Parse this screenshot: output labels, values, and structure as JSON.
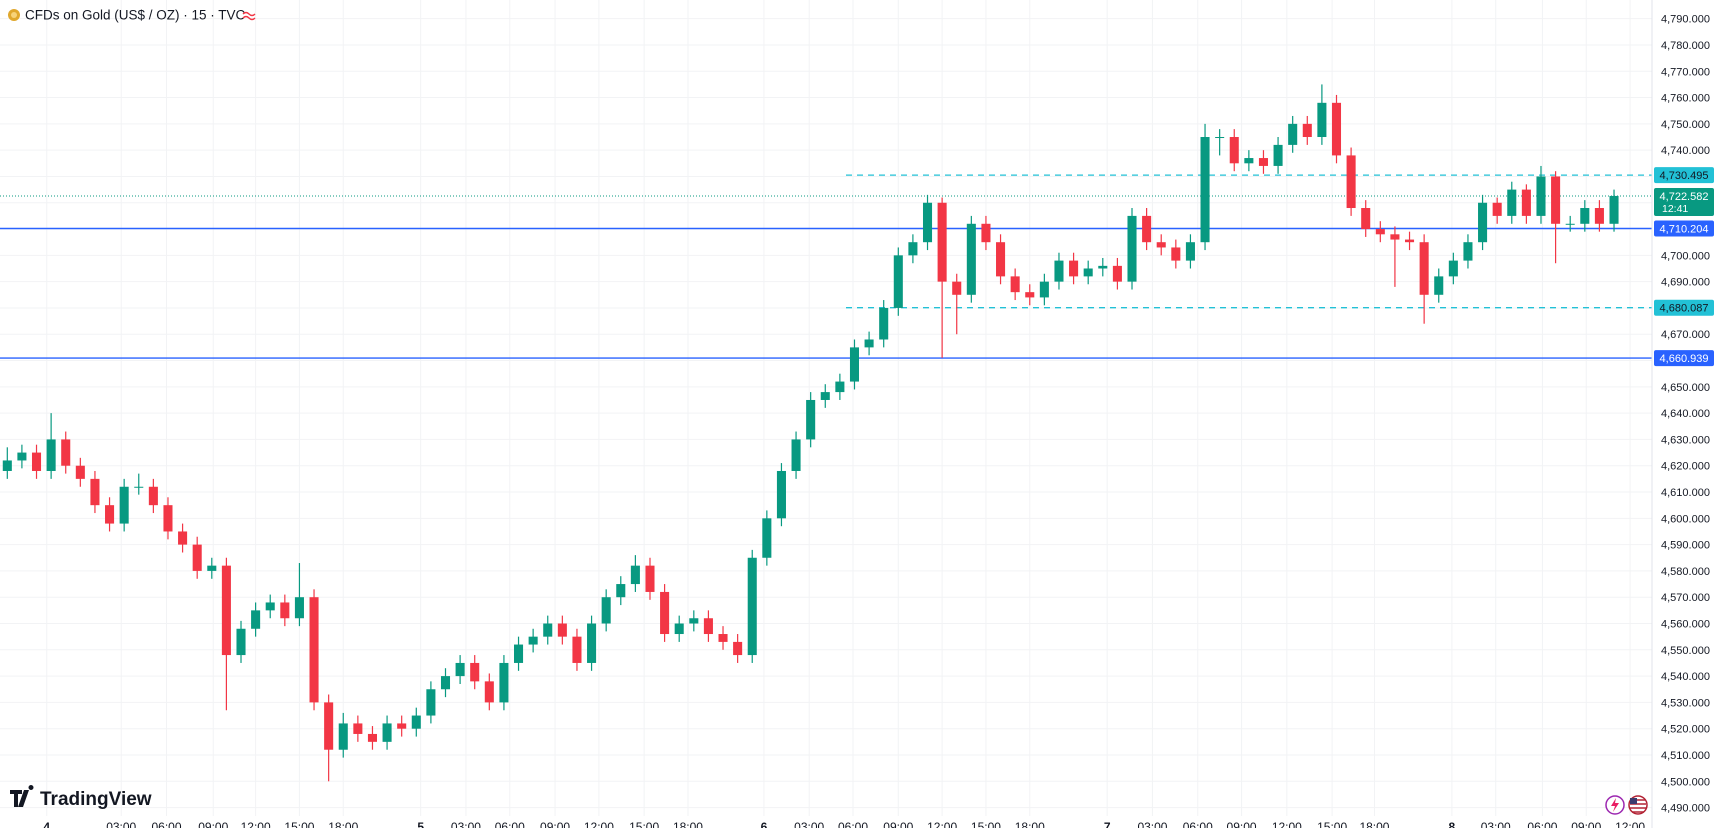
{
  "chart_data": {
    "type": "candlestick",
    "title": "CFDs on Gold (US$ / OZ) · 15 · TVC",
    "logo": "TradingView",
    "up_color": "#089981",
    "down_color": "#f23645",
    "grid": true,
    "x": [
      0,
      1,
      2,
      3,
      4,
      5,
      6,
      7,
      8,
      9,
      10,
      11,
      12,
      13,
      14,
      15,
      16,
      17,
      18,
      19,
      20,
      21,
      22,
      23,
      24,
      25,
      26,
      27,
      28,
      29,
      30,
      31,
      32,
      33,
      34,
      35,
      36,
      37,
      38,
      39,
      40,
      41,
      42,
      43,
      44,
      45,
      46,
      47,
      48,
      49,
      50,
      51,
      52,
      53,
      54,
      55,
      56,
      57,
      58,
      59,
      60,
      61,
      62,
      63,
      64,
      65,
      66,
      67,
      68,
      69,
      70,
      71,
      72,
      73,
      74,
      75,
      76,
      77,
      78,
      79,
      80,
      81,
      82,
      83,
      84,
      85,
      86,
      87,
      88,
      89,
      90,
      91,
      92,
      93,
      94,
      95,
      96,
      97,
      98,
      99,
      100,
      101,
      102,
      103,
      104,
      105,
      106,
      107,
      108,
      109,
      110
    ],
    "open": [
      4618,
      4622,
      4625,
      4618,
      4630,
      4620,
      4615,
      4605,
      4598,
      4612,
      4612,
      4605,
      4595,
      4590,
      4580,
      4582,
      4548,
      4558,
      4565,
      4568,
      4562,
      4570,
      4530,
      4512,
      4522,
      4518,
      4515,
      4522,
      4520,
      4525,
      4535,
      4540,
      4545,
      4538,
      4530,
      4545,
      4552,
      4555,
      4560,
      4555,
      4545,
      4560,
      4570,
      4575,
      4582,
      4572,
      4556,
      4560,
      4562,
      4556,
      4553,
      4548,
      4585,
      4600,
      4618,
      4630,
      4645,
      4648,
      4652,
      4665,
      4668,
      4680,
      4700,
      4705,
      4720,
      4690,
      4685,
      4712,
      4705,
      4692,
      4686,
      4684,
      4690,
      4698,
      4692,
      4695,
      4696,
      4690,
      4715,
      4705,
      4703,
      4698,
      4705,
      4745,
      4745,
      4735,
      4737,
      4734,
      4742,
      4750,
      4745,
      4758,
      4738,
      4718,
      4710,
      4708,
      4706,
      4705,
      4685,
      4692,
      4698,
      4705,
      4720,
      4715,
      4725,
      4715,
      4730,
      4712,
      4712,
      4718,
      4712
    ],
    "high": [
      4627,
      4628,
      4628,
      4640,
      4633,
      4623,
      4618,
      4608,
      4615,
      4617,
      4615,
      4608,
      4598,
      4593,
      4585,
      4585,
      4561,
      4568,
      4571,
      4571,
      4583,
      4573,
      4533,
      4526,
      4525,
      4521,
      4525,
      4525,
      4528,
      4538,
      4543,
      4548,
      4548,
      4541,
      4548,
      4555,
      4558,
      4563,
      4563,
      4558,
      4563,
      4573,
      4578,
      4586,
      4585,
      4575,
      4563,
      4565,
      4565,
      4559,
      4556,
      4588,
      4603,
      4621,
      4633,
      4648,
      4651,
      4655,
      4668,
      4671,
      4683,
      4703,
      4708,
      4723,
      4722,
      4693,
      4715,
      4715,
      4708,
      4695,
      4689,
      4693,
      4701,
      4701,
      4698,
      4699,
      4699,
      4718,
      4718,
      4708,
      4706,
      4708,
      4750,
      4748,
      4748,
      4740,
      4740,
      4745,
      4753,
      4753,
      4765,
      4761,
      4741,
      4721,
      4713,
      4711,
      4709,
      4708,
      4695,
      4701,
      4708,
      4723,
      4722,
      4728,
      4727,
      4734,
      4732,
      4715,
      4721,
      4721,
      4725
    ],
    "low": [
      4615,
      4619,
      4615,
      4615,
      4617,
      4612,
      4602,
      4595,
      4595,
      4609,
      4602,
      4592,
      4587,
      4577,
      4577,
      4527,
      4545,
      4555,
      4562,
      4559,
      4559,
      4527,
      4500,
      4509,
      4515,
      4512,
      4512,
      4517,
      4517,
      4522,
      4532,
      4537,
      4535,
      4527,
      4527,
      4542,
      4549,
      4552,
      4552,
      4542,
      4542,
      4557,
      4567,
      4572,
      4569,
      4553,
      4553,
      4557,
      4553,
      4550,
      4545,
      4545,
      4582,
      4597,
      4615,
      4627,
      4642,
      4645,
      4649,
      4662,
      4665,
      4677,
      4697,
      4702,
      4661,
      4670,
      4682,
      4702,
      4689,
      4683,
      4681,
      4681,
      4687,
      4689,
      4689,
      4692,
      4687,
      4687,
      4702,
      4700,
      4695,
      4695,
      4702,
      4738,
      4732,
      4732,
      4731,
      4731,
      4739,
      4742,
      4742,
      4735,
      4715,
      4707,
      4705,
      4688,
      4702,
      4674,
      4682,
      4689,
      4695,
      4702,
      4712,
      4712,
      4712,
      4712,
      4697,
      4709,
      4709,
      4709,
      4709
    ],
    "close": [
      4622,
      4625,
      4618,
      4630,
      4620,
      4615,
      4605,
      4598,
      4612,
      4612,
      4605,
      4595,
      4590,
      4580,
      4582,
      4548,
      4558,
      4565,
      4568,
      4562,
      4570,
      4530,
      4512,
      4522,
      4518,
      4515,
      4522,
      4520,
      4525,
      4535,
      4540,
      4545,
      4538,
      4530,
      4545,
      4552,
      4555,
      4560,
      4555,
      4545,
      4560,
      4570,
      4575,
      4582,
      4572,
      4556,
      4560,
      4562,
      4556,
      4553,
      4548,
      4585,
      4600,
      4618,
      4630,
      4645,
      4648,
      4652,
      4665,
      4668,
      4680,
      4700,
      4705,
      4720,
      4690,
      4685,
      4712,
      4705,
      4692,
      4686,
      4684,
      4690,
      4698,
      4692,
      4695,
      4696,
      4690,
      4715,
      4705,
      4703,
      4698,
      4705,
      4745,
      4745,
      4735,
      4737,
      4734,
      4742,
      4750,
      4745,
      4758,
      4738,
      4718,
      4710,
      4708,
      4706,
      4705,
      4685,
      4692,
      4698,
      4705,
      4720,
      4715,
      4725,
      4715,
      4730,
      4712,
      4712,
      4718,
      4712,
      4722.582
    ],
    "last_price": {
      "label": "4,722.582",
      "countdown": "12:41",
      "color": "#089981"
    },
    "price_lines": [
      {
        "value": 4730.495,
        "label": "4,730.495",
        "color": "#22c1d6",
        "style": "dashed"
      },
      {
        "value": 4710.204,
        "label": "4,710.204",
        "color": "#2962ff",
        "style": "solid"
      },
      {
        "value": 4680.087,
        "label": "4,680.087",
        "color": "#22c1d6",
        "style": "dashed"
      },
      {
        "value": 4660.939,
        "label": "4,660.939",
        "color": "#2962ff",
        "style": "solid"
      }
    ],
    "xlim": [
      -0.5,
      112.6
    ],
    "xticks": [
      {
        "value": 2.7,
        "label": "4"
      },
      {
        "value": 7.8,
        "label": "03:00"
      },
      {
        "value": 10.9,
        "label": "06:00"
      },
      {
        "value": 14.1,
        "label": "09:00"
      },
      {
        "value": 17.0,
        "label": "12:00"
      },
      {
        "value": 20.0,
        "label": "15:00"
      },
      {
        "value": 23.0,
        "label": "18:00"
      },
      {
        "value": 28.3,
        "label": "5"
      },
      {
        "value": 31.4,
        "label": "03:00"
      },
      {
        "value": 34.4,
        "label": "06:00"
      },
      {
        "value": 37.5,
        "label": "09:00"
      },
      {
        "value": 40.5,
        "label": "12:00"
      },
      {
        "value": 43.6,
        "label": "15:00"
      },
      {
        "value": 46.6,
        "label": "18:00"
      },
      {
        "value": 51.8,
        "label": "6"
      },
      {
        "value": 54.9,
        "label": "03:00"
      },
      {
        "value": 57.9,
        "label": "06:00"
      },
      {
        "value": 61.0,
        "label": "09:00"
      },
      {
        "value": 64.0,
        "label": "12:00"
      },
      {
        "value": 67.0,
        "label": "15:00"
      },
      {
        "value": 70.0,
        "label": "18:00"
      },
      {
        "value": 75.3,
        "label": "7"
      },
      {
        "value": 78.4,
        "label": "03:00"
      },
      {
        "value": 81.5,
        "label": "06:00"
      },
      {
        "value": 84.5,
        "label": "09:00"
      },
      {
        "value": 87.6,
        "label": "12:00"
      },
      {
        "value": 90.7,
        "label": "15:00"
      },
      {
        "value": 93.6,
        "label": "18:00"
      },
      {
        "value": 98.9,
        "label": "8"
      },
      {
        "value": 101.9,
        "label": "03:00"
      },
      {
        "value": 105.1,
        "label": "06:00"
      },
      {
        "value": 108.1,
        "label": "09:00"
      },
      {
        "value": 111.1,
        "label": "12:00"
      }
    ],
    "ylim": [
      4486.8,
      4797.1
    ],
    "yticks": [
      {
        "value": 4490,
        "label": "4,490.000"
      },
      {
        "value": 4500,
        "label": "4,500.000"
      },
      {
        "value": 4510,
        "label": "4,510.000"
      },
      {
        "value": 4520,
        "label": "4,520.000"
      },
      {
        "value": 4530,
        "label": "4,530.000"
      },
      {
        "value": 4540,
        "label": "4,540.000"
      },
      {
        "value": 4550,
        "label": "4,550.000"
      },
      {
        "value": 4560,
        "label": "4,560.000"
      },
      {
        "value": 4570,
        "label": "4,570.000"
      },
      {
        "value": 4580,
        "label": "4,580.000"
      },
      {
        "value": 4590,
        "label": "4,590.000"
      },
      {
        "value": 4600,
        "label": "4,600.000"
      },
      {
        "value": 4610,
        "label": "4,610.000"
      },
      {
        "value": 4620,
        "label": "4,620.000"
      },
      {
        "value": 4630,
        "label": "4,630.000"
      },
      {
        "value": 4640,
        "label": "4,640.000"
      },
      {
        "value": 4650,
        "label": "4,650.000"
      },
      {
        "value": 4660,
        "label": "4,660.000"
      },
      {
        "value": 4670,
        "label": "4,670.000"
      },
      {
        "value": 4680,
        "label": "4,680.000"
      },
      {
        "value": 4690,
        "label": "4,690.000"
      },
      {
        "value": 4700,
        "label": "4,700.000"
      },
      {
        "value": 4710,
        "label": "4,710.000"
      },
      {
        "value": 4720,
        "label": "4,720.000"
      },
      {
        "value": 4730,
        "label": "4,730.000"
      },
      {
        "value": 4740,
        "label": "4,740.000"
      },
      {
        "value": 4750,
        "label": "4,750.000"
      },
      {
        "value": 4760,
        "label": "4,760.000"
      },
      {
        "value": 4770,
        "label": "4,770.000"
      },
      {
        "value": 4780,
        "label": "4,780.000"
      },
      {
        "value": 4790,
        "label": "4,790.000"
      }
    ]
  }
}
